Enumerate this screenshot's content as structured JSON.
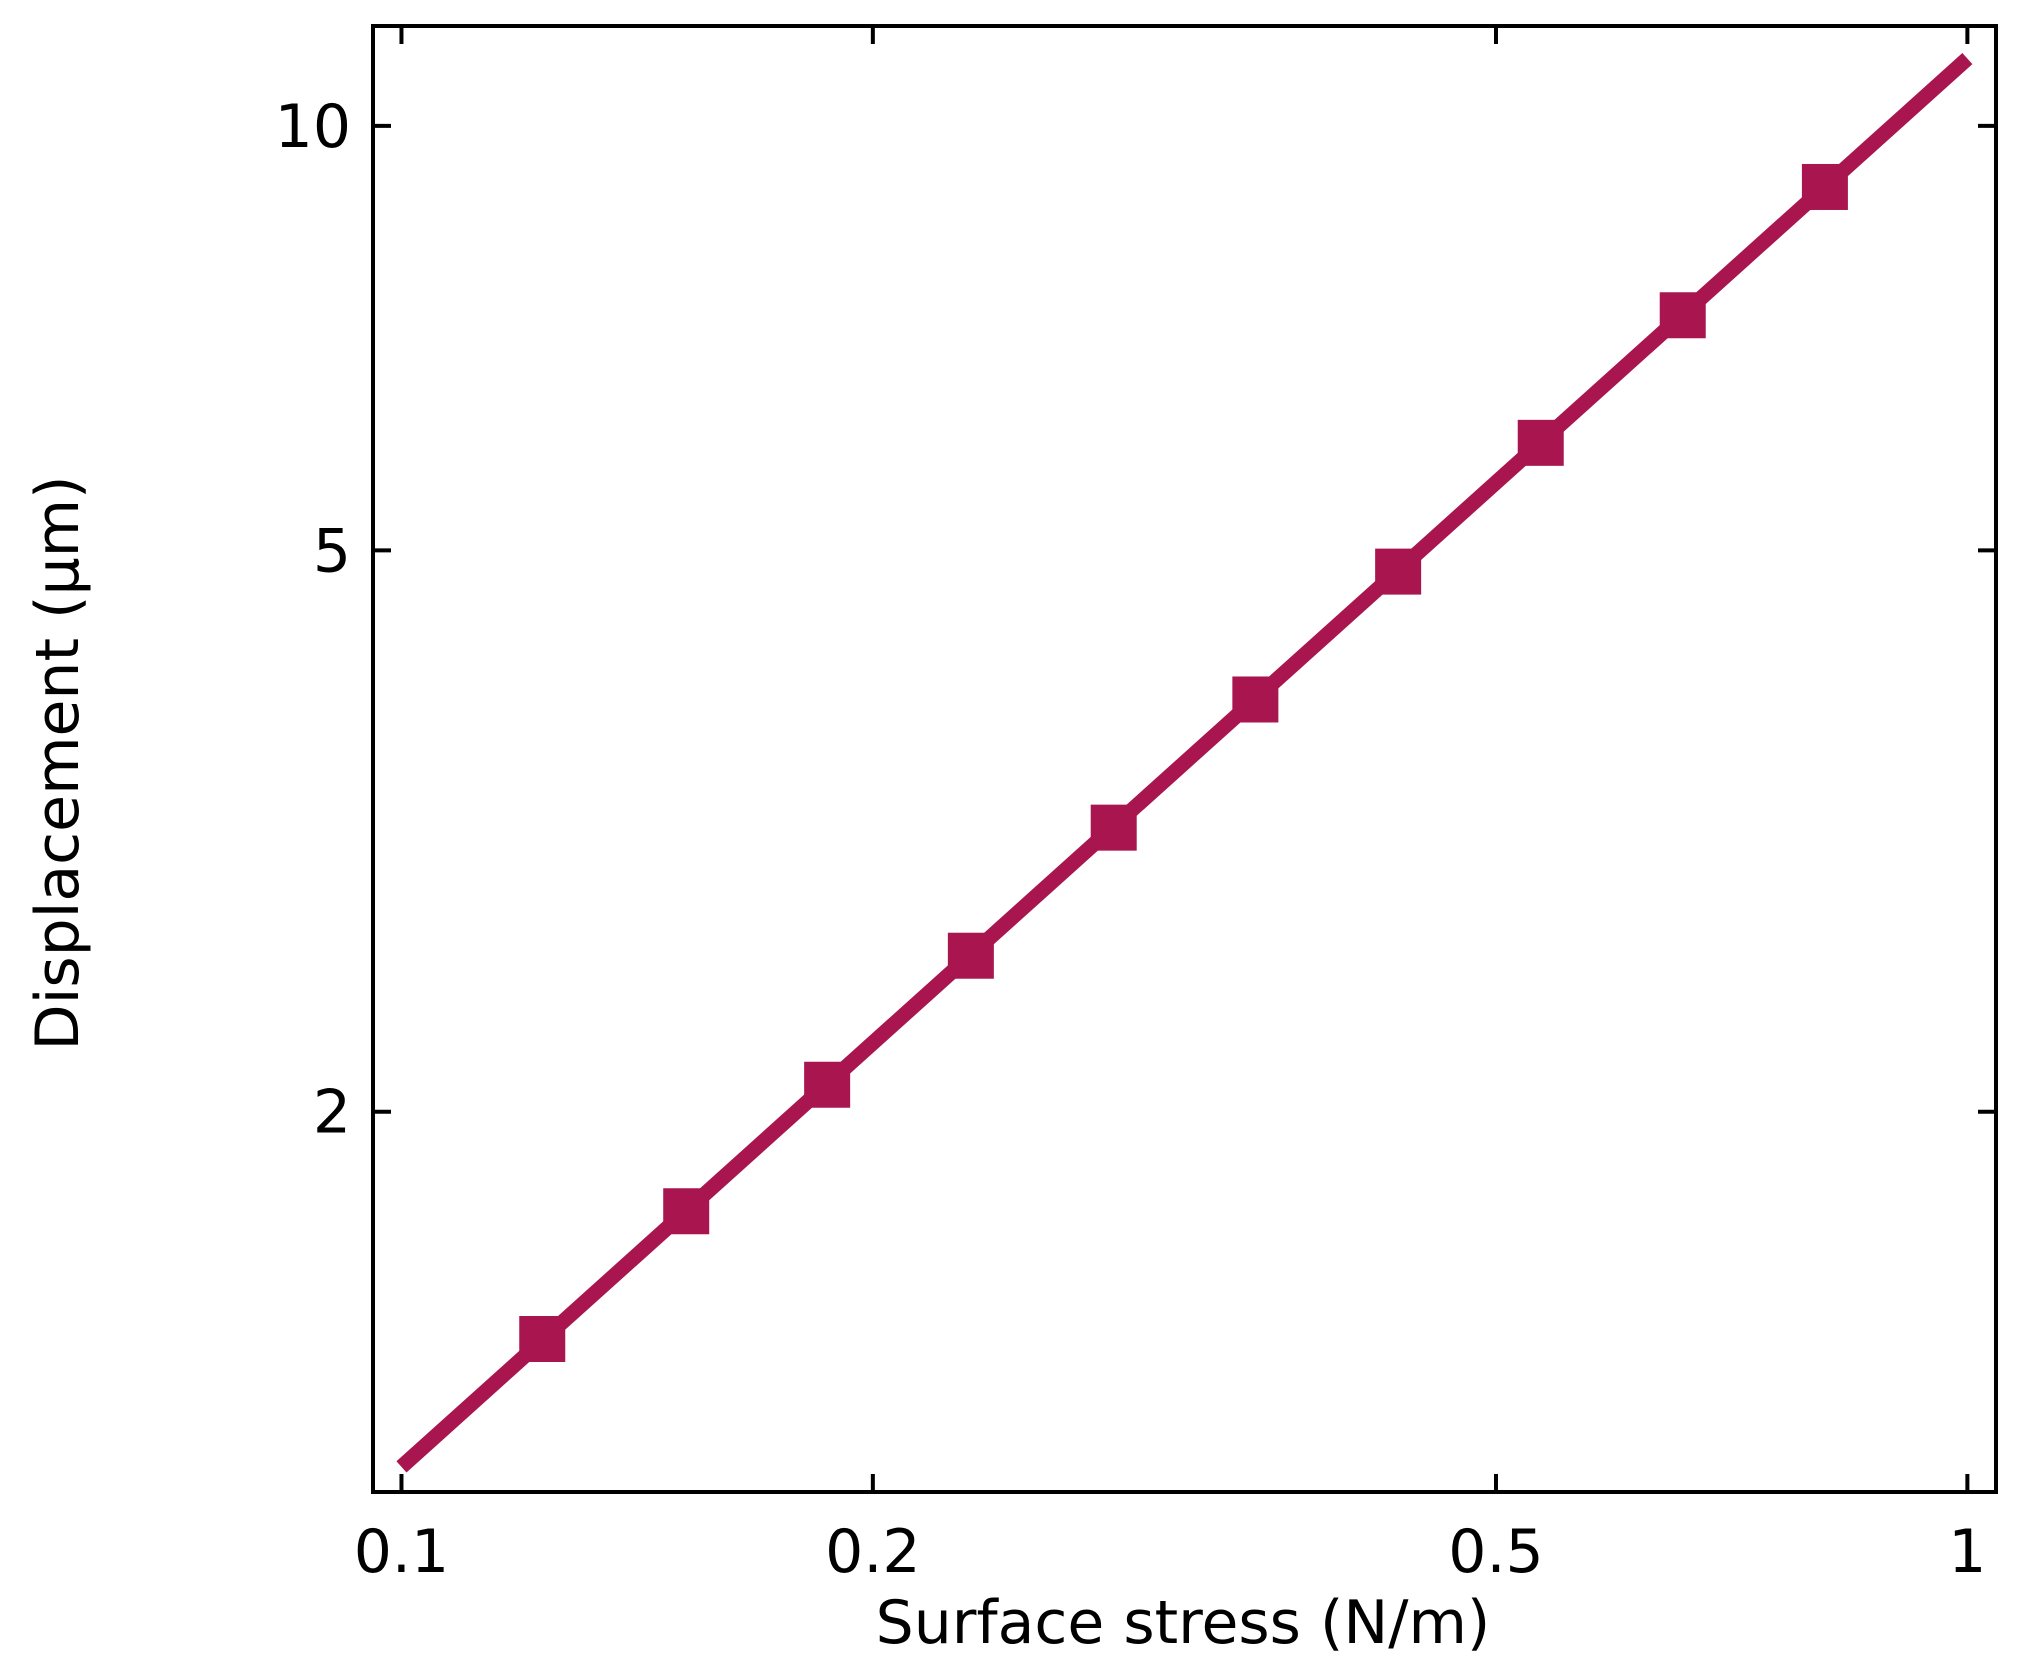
{
  "chart_data": {
    "type": "line",
    "x_label": "Surface stress (N/m)",
    "y_label": "Displacement (μm)",
    "x": [
      0.123,
      0.152,
      0.187,
      0.231,
      0.285,
      0.351,
      0.433,
      0.534,
      0.658,
      0.811
    ],
    "values": [
      1.38,
      1.7,
      2.09,
      2.58,
      3.18,
      3.92,
      4.83,
      5.96,
      7.34,
      9.05
    ],
    "line": {
      "x": [
        0.1,
        1
      ],
      "values": [
        1.12,
        11.16
      ]
    },
    "color": "#a8154f",
    "marker": "square",
    "xlog": true,
    "ylog": true,
    "xlim": [
      0.0959,
      1.043
    ],
    "ylim": [
      1.075,
      11.77
    ],
    "xticks": [
      0.1,
      0.2,
      0.5,
      1
    ],
    "yticks": [
      2,
      5,
      10
    ],
    "grid": false
  }
}
